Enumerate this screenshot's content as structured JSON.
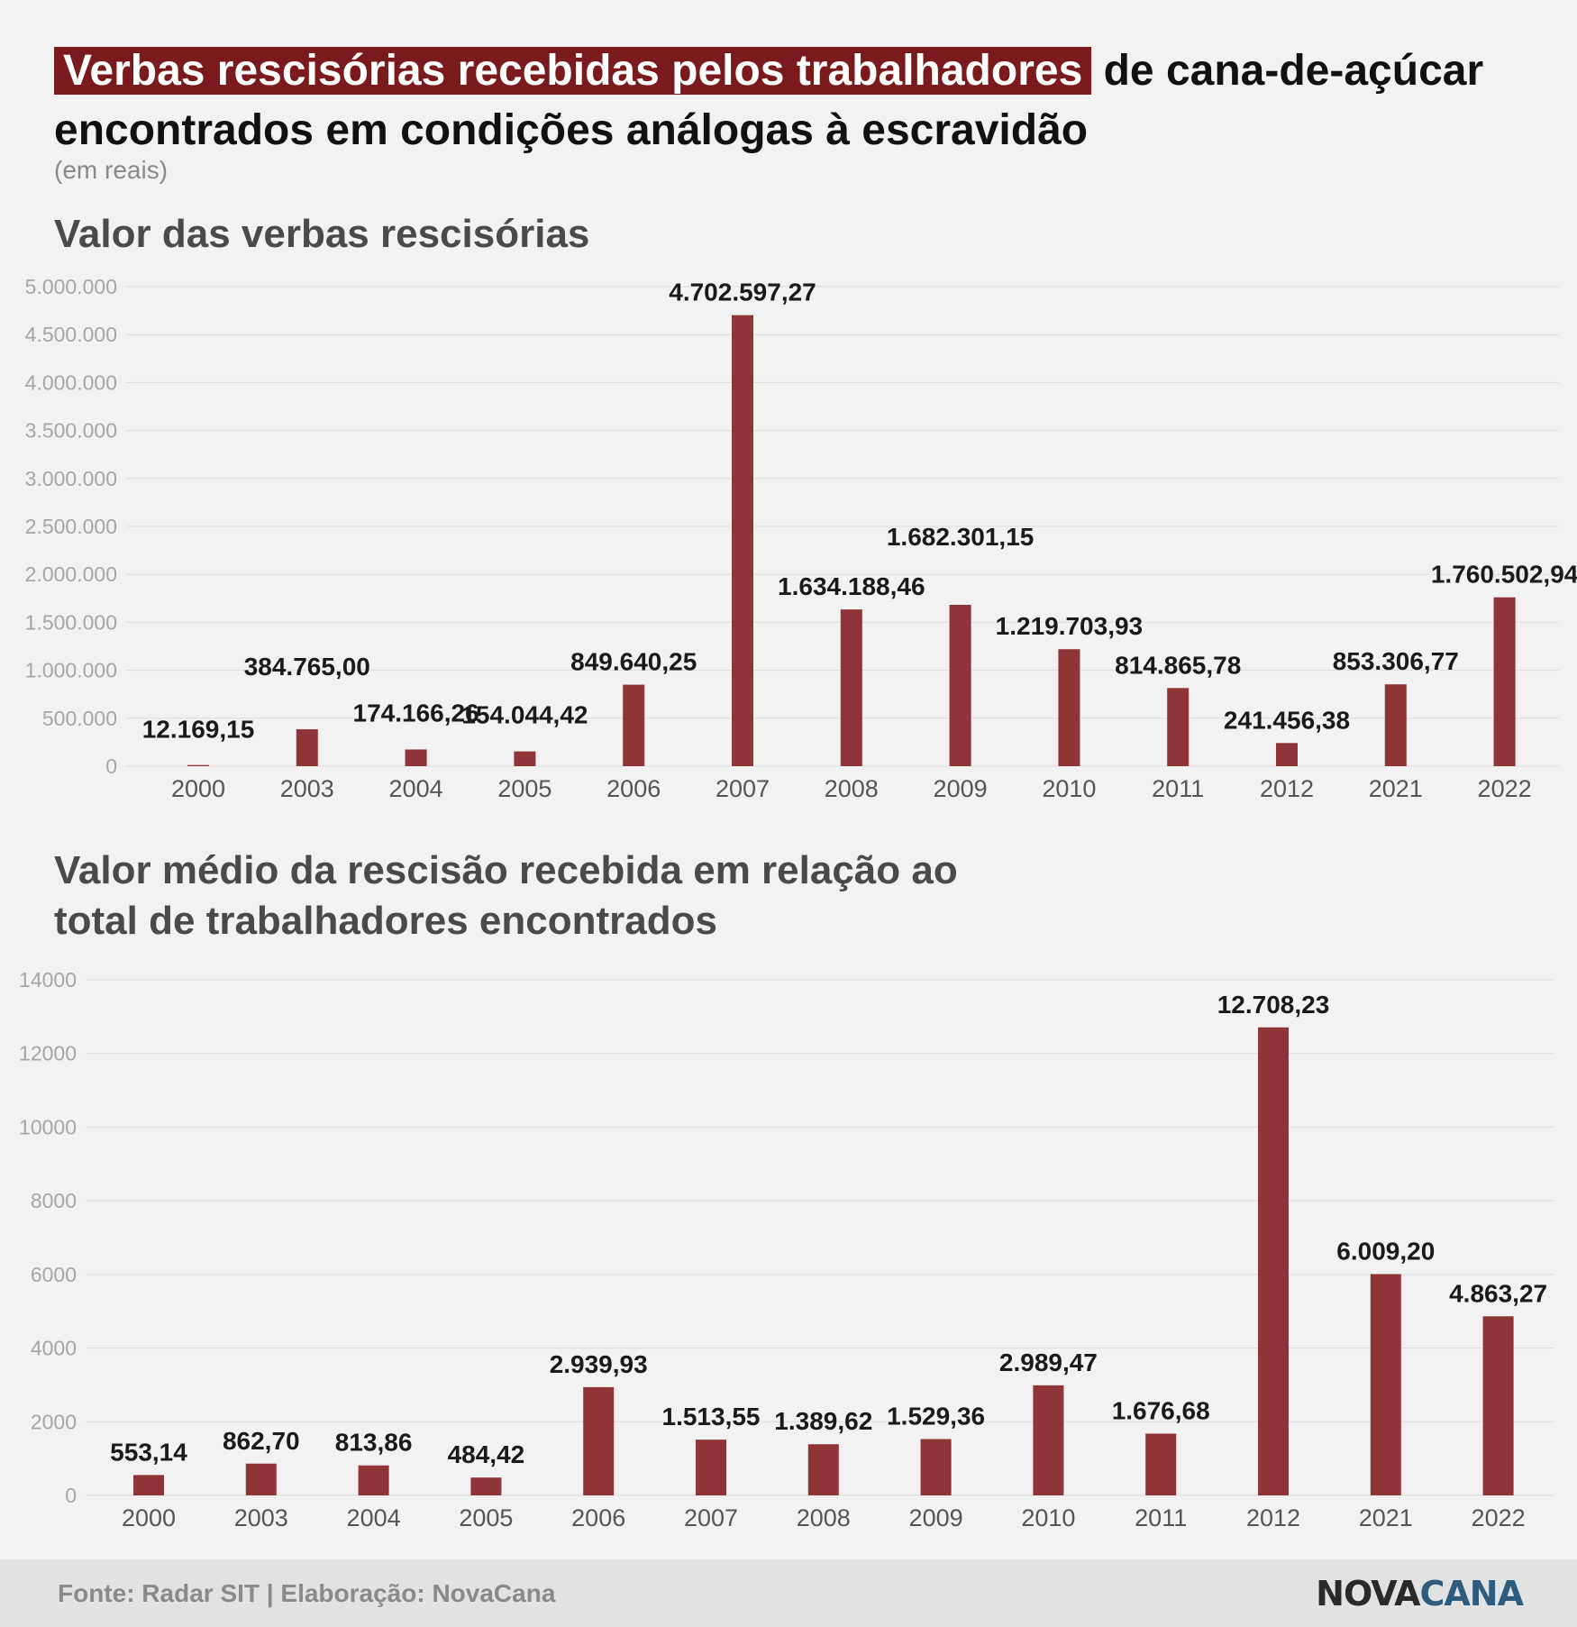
{
  "title": {
    "highlight": "Verbas rescisórias recebidas pelos trabalhadores",
    "rest": "de cana-de-açúcar encontrados em condições análogas à escravidão"
  },
  "subtitle": "(em reais)",
  "footer": {
    "source": "Fonte: Radar SIT | Elaboração: NovaCana",
    "logo_part1": "NOVA",
    "logo_part2": "CANA"
  },
  "colors": {
    "bar": "#8f3537",
    "title_highlight": "#7a1a1c",
    "logo_accent": "#2e5c7e"
  },
  "chart_data": [
    {
      "type": "bar",
      "title": "Valor das verbas rescisórias",
      "categories": [
        "2000",
        "2003",
        "2004",
        "2005",
        "2006",
        "2007",
        "2008",
        "2009",
        "2010",
        "2011",
        "2012",
        "2021",
        "2022"
      ],
      "values": [
        12169.15,
        384765.0,
        174166.26,
        154044.42,
        849640.25,
        4702597.27,
        1634188.46,
        1682301.15,
        1219703.93,
        814865.78,
        241456.38,
        853306.77,
        1760502.94
      ],
      "value_labels": [
        "12.169,15",
        "384.765,00",
        "174.166,26",
        "154.044,42",
        "849.640,25",
        "4.702.597,27",
        "1.634.188,46",
        "1.682.301,15",
        "1.219.703,93",
        "814.865,78",
        "241.456,38",
        "853.306,77",
        "1.760.502,94"
      ],
      "yticks": [
        0,
        500000,
        1000000,
        1500000,
        2000000,
        2500000,
        3000000,
        3500000,
        4000000,
        4500000,
        5000000
      ],
      "ytick_labels": [
        "0",
        "500.000",
        "1.000.000",
        "1.500.000",
        "2.000.000",
        "2.500.000",
        "3.000.000",
        "3.500.000",
        "4.000.000",
        "4.500.000",
        "5.000.000"
      ],
      "ylim": [
        0,
        5000000
      ],
      "grid": true,
      "xlabel": "",
      "ylabel": ""
    },
    {
      "type": "bar",
      "title": "Valor médio da rescisão recebida em relação ao total de trabalhadores encontrados",
      "categories": [
        "2000",
        "2003",
        "2004",
        "2005",
        "2006",
        "2007",
        "2008",
        "2009",
        "2010",
        "2011",
        "2012",
        "2021",
        "2022"
      ],
      "values": [
        553.14,
        862.7,
        813.86,
        484.42,
        2939.93,
        1513.55,
        1389.62,
        1529.36,
        2989.47,
        1676.68,
        12708.23,
        6009.2,
        4863.27
      ],
      "value_labels": [
        "553,14",
        "862,70",
        "813,86",
        "484,42",
        "2.939,93",
        "1.513,55",
        "1.389,62",
        "1.529,36",
        "2.989,47",
        "1.676,68",
        "12.708,23",
        "6.009,20",
        "4.863,27"
      ],
      "yticks": [
        0,
        2000,
        4000,
        6000,
        8000,
        10000,
        12000,
        14000
      ],
      "ytick_labels": [
        "0",
        "2000",
        "4000",
        "6000",
        "8000",
        "10000",
        "12000",
        "14000"
      ],
      "ylim": [
        0,
        14000
      ],
      "grid": true,
      "xlabel": "",
      "ylabel": ""
    }
  ]
}
